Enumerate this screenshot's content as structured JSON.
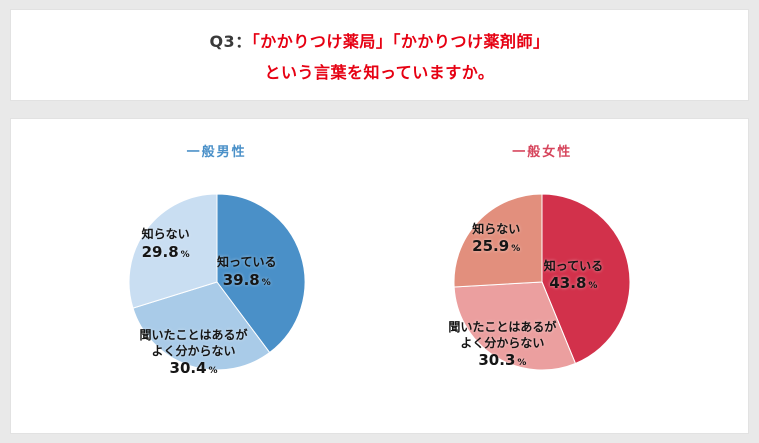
{
  "header": {
    "q_label": "Q3：",
    "title_line1": "「かかりつけ薬局」「かかりつけ薬剤師」",
    "title_line2": "という言葉を知っていますか。",
    "accent_color": "#e60012"
  },
  "chart_data": [
    {
      "type": "pie",
      "title": "一般男性",
      "title_color": "#4a90c8",
      "unit": "%",
      "start_angle_deg": -90,
      "direction": "clockwise",
      "slices": [
        {
          "label": "知っている",
          "value": 39.8,
          "color": "#4a90c8"
        },
        {
          "label": "聞いたことはあるが\nよく分からない",
          "value": 30.4,
          "color": "#a9cbe8"
        },
        {
          "label": "知らない",
          "value": 29.8,
          "color": "#c9def2"
        }
      ]
    },
    {
      "type": "pie",
      "title": "一般女性",
      "title_color": "#d6455c",
      "unit": "%",
      "start_angle_deg": -90,
      "direction": "clockwise",
      "slices": [
        {
          "label": "知っている",
          "value": 43.8,
          "color": "#d2314b"
        },
        {
          "label": "聞いたことはあるが\nよく分からない",
          "value": 30.3,
          "color": "#eb9f9f"
        },
        {
          "label": "知らない",
          "value": 25.9,
          "color": "#e28f7d"
        }
      ]
    }
  ]
}
